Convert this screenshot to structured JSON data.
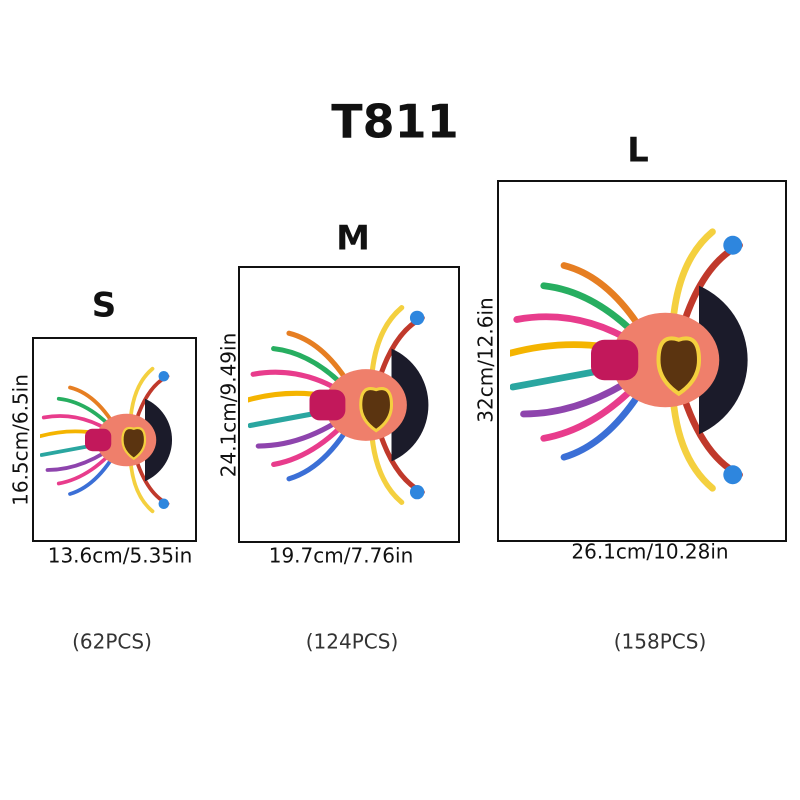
{
  "title": "T811",
  "sizes": [
    {
      "label": "S",
      "width": "13.6cm/5.35in",
      "height": "16.5cm/6.5in",
      "pieces": "(62PCS)"
    },
    {
      "label": "M",
      "width": "19.7cm/7.76in",
      "height": "24.1cm/9.49in",
      "pieces": "(124PCS)"
    },
    {
      "label": "L",
      "width": "26.1cm/10.28in",
      "height": "32cm/12.6in",
      "pieces": "(158PCS)"
    }
  ]
}
